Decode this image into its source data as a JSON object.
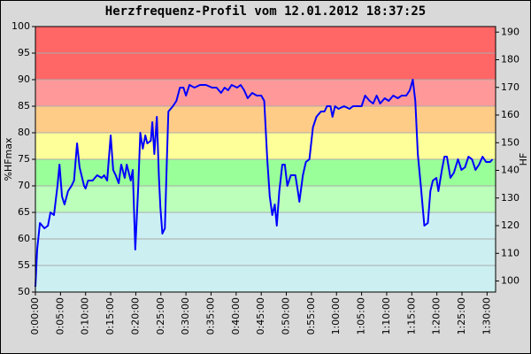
{
  "chart_data": {
    "type": "line",
    "title": "Herzfrequenz-Profil vom 12.01.2012 18:37:25",
    "ylabel": "%HFmax",
    "y2label": "HF",
    "xlim": [
      0,
      91.7
    ],
    "ylim": [
      50,
      100
    ],
    "y2lim": [
      96,
      192
    ],
    "yticks": [
      50,
      55,
      60,
      65,
      70,
      75,
      80,
      85,
      90,
      95,
      100
    ],
    "y2ticks": [
      100,
      110,
      120,
      130,
      140,
      150,
      160,
      170,
      180,
      190
    ],
    "xticks": [
      {
        "value": 0,
        "label": "0:00:00"
      },
      {
        "value": 5,
        "label": "0:05:00"
      },
      {
        "value": 10,
        "label": "0:10:00"
      },
      {
        "value": 15,
        "label": "0:15:00"
      },
      {
        "value": 20,
        "label": "0:20:00"
      },
      {
        "value": 25,
        "label": "0:25:00"
      },
      {
        "value": 30,
        "label": "0:30:00"
      },
      {
        "value": 35,
        "label": "0:35:00"
      },
      {
        "value": 40,
        "label": "0:40:00"
      },
      {
        "value": 45,
        "label": "0:45:00"
      },
      {
        "value": 50,
        "label": "0:50:00"
      },
      {
        "value": 55,
        "label": "0:55:00"
      },
      {
        "value": 60,
        "label": "1:00:00"
      },
      {
        "value": 65,
        "label": "1:05:00"
      },
      {
        "value": 70,
        "label": "1:10:00"
      },
      {
        "value": 75,
        "label": "1:15:00"
      },
      {
        "value": 80,
        "label": "1:20:00"
      },
      {
        "value": 85,
        "label": "1:25:00"
      },
      {
        "value": 90,
        "label": "1:30:00"
      }
    ],
    "grid": true,
    "bands": [
      {
        "from": 90,
        "to": 100,
        "color": "#ff6666"
      },
      {
        "from": 85,
        "to": 90,
        "color": "#ff9999"
      },
      {
        "from": 80,
        "to": 85,
        "color": "#ffcc88"
      },
      {
        "from": 75,
        "to": 80,
        "color": "#ffff99"
      },
      {
        "from": 70,
        "to": 75,
        "color": "#99ff99"
      },
      {
        "from": 65,
        "to": 70,
        "color": "#bbffbb"
      },
      {
        "from": 50,
        "to": 65,
        "color": "#ccf0f2"
      }
    ],
    "series": [
      {
        "color": "#0000ff",
        "x": [
          0,
          0.35,
          0.9,
          1.8,
          2.5,
          3,
          3.7,
          4.4,
          4.8,
          5.3,
          5.8,
          6.5,
          7.2,
          7.7,
          8.3,
          8.8,
          9.7,
          10,
          10.5,
          11.4,
          12.3,
          13.2,
          13.7,
          14.3,
          15,
          15.5,
          16,
          16.6,
          17.1,
          17.8,
          18.2,
          19,
          19.4,
          19.9,
          20.5,
          20.9,
          21.4,
          21.9,
          22.3,
          23,
          23.3,
          23.7,
          24.2,
          24.6,
          24.9,
          25.3,
          25.8,
          26.2,
          26.5,
          27.4,
          28.1,
          28.8,
          29.5,
          30,
          30.7,
          31.7,
          32.8,
          34,
          35.2,
          36.1,
          37,
          37.7,
          38.4,
          39.1,
          40.2,
          40.9,
          41.6,
          42.3,
          43.2,
          44.1,
          45,
          45.6,
          46.2,
          46.7,
          47.2,
          47.7,
          48.1,
          48.6,
          49.2,
          49.7,
          50.2,
          50.9,
          51.8,
          52.3,
          52.6,
          53.3,
          53.9,
          54.6,
          55.3,
          56,
          56.9,
          57.6,
          58.1,
          58.8,
          59.2,
          59.7,
          60.4,
          61.5,
          62.6,
          63.3,
          64.3,
          65,
          65.7,
          66.6,
          67.3,
          68,
          68.7,
          69.6,
          70.4,
          71.3,
          72.2,
          73,
          73.9,
          74.6,
          75.2,
          75.7,
          76.2,
          76.8,
          77.5,
          78.2,
          78.7,
          79.2,
          79.9,
          80.3,
          81,
          81.5,
          82,
          82.7,
          83.4,
          84.2,
          84.9,
          85.6,
          86.3,
          87,
          87.7,
          88.4,
          89.1,
          89.8,
          90.6,
          91.1
        ],
        "values": [
          51,
          58,
          63,
          62,
          62.5,
          65,
          64.5,
          70,
          74,
          68,
          66.5,
          69,
          70,
          71,
          78,
          73.5,
          70,
          69.5,
          71,
          71,
          72,
          71.5,
          72,
          71,
          79.5,
          73,
          72,
          70.5,
          74,
          71.5,
          74,
          71,
          73,
          58,
          70,
          80,
          77,
          79.5,
          78,
          78.5,
          82,
          76,
          83,
          72,
          66,
          61,
          62,
          75,
          84,
          85,
          86,
          88.5,
          88.5,
          87,
          89,
          88.5,
          89,
          89,
          88.5,
          88.5,
          87.5,
          88.5,
          88,
          89,
          88.5,
          89,
          88,
          86.5,
          87.5,
          87,
          87,
          86,
          75,
          68,
          64.5,
          66.5,
          62.5,
          69,
          74,
          74,
          70,
          72,
          72,
          69,
          67,
          72,
          74.5,
          75,
          81,
          83,
          84,
          84,
          85,
          85,
          83,
          85,
          84.5,
          85,
          84.5,
          85,
          85,
          85,
          87,
          86,
          85.5,
          87,
          85.5,
          86.5,
          86,
          87,
          86.5,
          87,
          87,
          88,
          90,
          86,
          76,
          70,
          62.5,
          63,
          69,
          71,
          71.5,
          69,
          73,
          75.5,
          75.5,
          71.5,
          72.5,
          75,
          73,
          73.5,
          75.5,
          75,
          73,
          74,
          75.5,
          74.5,
          74.5,
          75
        ]
      }
    ]
  }
}
